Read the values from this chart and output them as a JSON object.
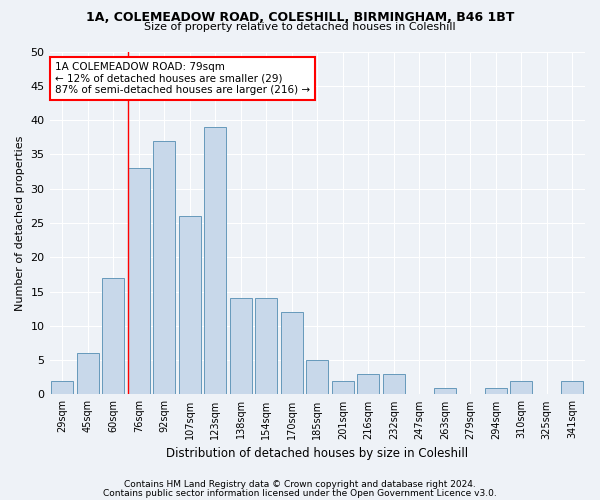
{
  "title1": "1A, COLEMEADOW ROAD, COLESHILL, BIRMINGHAM, B46 1BT",
  "title2": "Size of property relative to detached houses in Coleshill",
  "xlabel": "Distribution of detached houses by size in Coleshill",
  "ylabel": "Number of detached properties",
  "categories": [
    "29sqm",
    "45sqm",
    "60sqm",
    "76sqm",
    "92sqm",
    "107sqm",
    "123sqm",
    "138sqm",
    "154sqm",
    "170sqm",
    "185sqm",
    "201sqm",
    "216sqm",
    "232sqm",
    "247sqm",
    "263sqm",
    "279sqm",
    "294sqm",
    "310sqm",
    "325sqm",
    "341sqm"
  ],
  "values": [
    2,
    6,
    17,
    33,
    37,
    26,
    39,
    14,
    14,
    12,
    5,
    2,
    3,
    3,
    0,
    1,
    0,
    1,
    2,
    0,
    2
  ],
  "bar_color": "#c8d8ea",
  "bar_edge_color": "#6699bb",
  "annotation_text": "1A COLEMEADOW ROAD: 79sqm\n← 12% of detached houses are smaller (29)\n87% of semi-detached houses are larger (216) →",
  "annotation_box_color": "white",
  "annotation_box_edge_color": "red",
  "vline_color": "red",
  "vline_x": 2.57,
  "ylim": [
    0,
    50
  ],
  "yticks": [
    0,
    5,
    10,
    15,
    20,
    25,
    30,
    35,
    40,
    45,
    50
  ],
  "footer1": "Contains HM Land Registry data © Crown copyright and database right 2024.",
  "footer2": "Contains public sector information licensed under the Open Government Licence v3.0.",
  "bg_color": "#eef2f7",
  "grid_color": "#ffffff"
}
